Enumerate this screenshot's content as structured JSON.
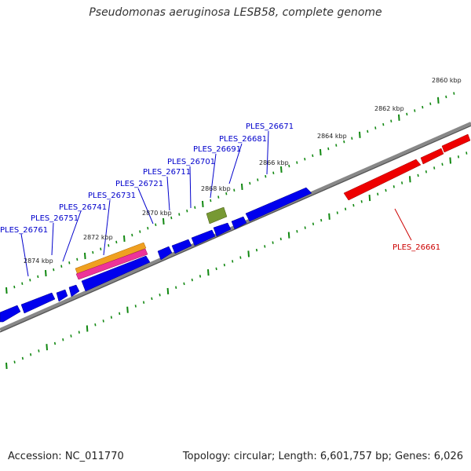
{
  "title": "Pseudomonas aeruginosa LESB58, complete genome",
  "footer": {
    "accession": "Accession: NC_011770",
    "summary": "Topology: circular; Length: 6,601,757 bp; Genes: 6,026"
  },
  "colors": {
    "forward_gene": "#0000ee",
    "reverse_gene": "#ee0000",
    "forward_label": "#0000cc",
    "reverse_label": "#cc0000",
    "tick": "#118811",
    "backbone": "#888888",
    "orange_feature": "#f0a020",
    "magenta_feature": "#ee3399",
    "olive_feature": "#779933"
  },
  "kbp_labels": [
    "2860 kbp",
    "2862 kbp",
    "2864 kbp",
    "2866 kbp",
    "2868 kbp",
    "2870 kbp",
    "2872 kbp",
    "2874 kbp"
  ],
  "gene_labels": [
    {
      "text": "PLES_26671",
      "strand": "forward"
    },
    {
      "text": "PLES_26681",
      "strand": "forward"
    },
    {
      "text": "PLES_26691",
      "strand": "forward"
    },
    {
      "text": "PLES_26701",
      "strand": "forward"
    },
    {
      "text": "PLES_26711",
      "strand": "forward"
    },
    {
      "text": "PLES_26721",
      "strand": "forward"
    },
    {
      "text": "PLES_26731",
      "strand": "forward"
    },
    {
      "text": "PLES_26741",
      "strand": "forward"
    },
    {
      "text": "PLES_26751",
      "strand": "forward"
    },
    {
      "text": "PLES_26761",
      "strand": "forward"
    },
    {
      "text": "PLES_26661",
      "strand": "reverse"
    }
  ]
}
